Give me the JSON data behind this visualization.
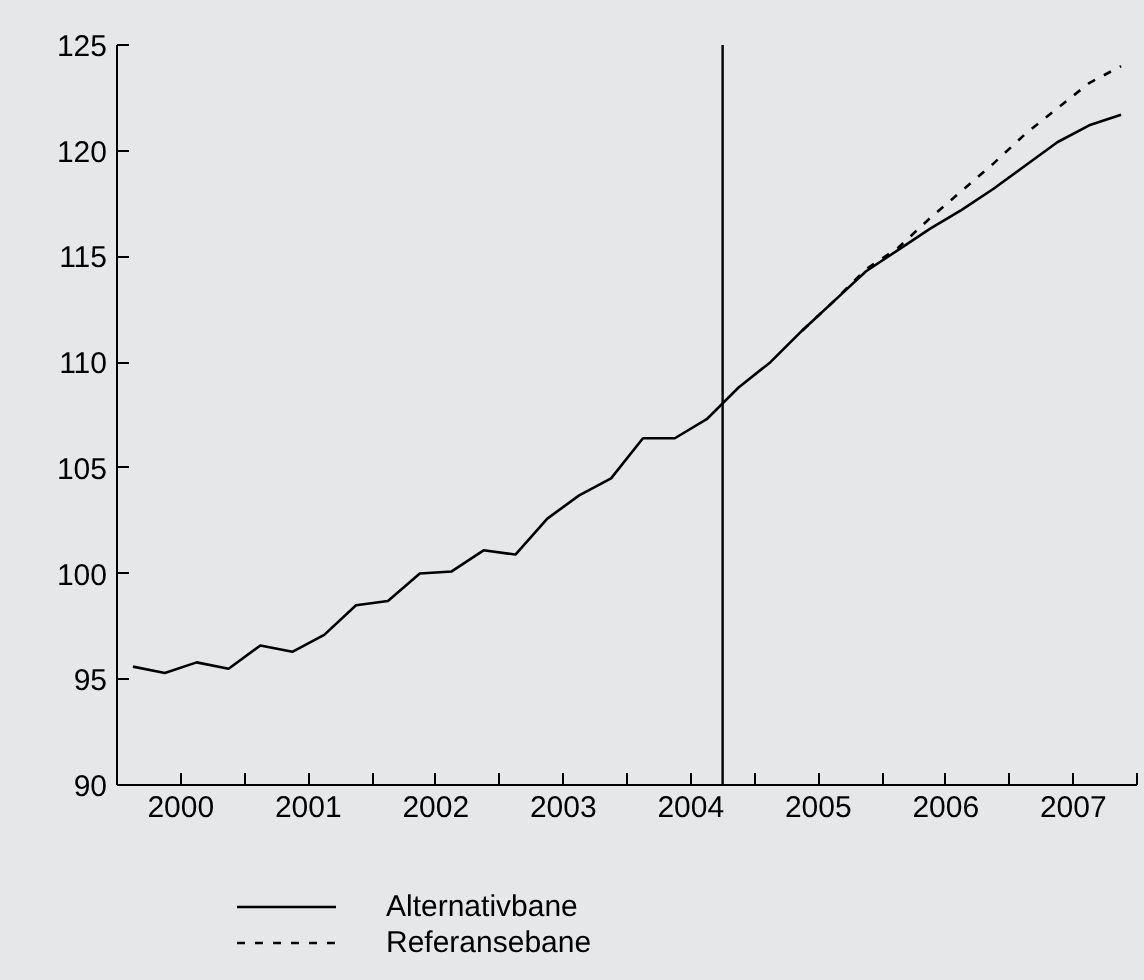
{
  "chart_data": {
    "type": "line",
    "xlim": [
      2000,
      2008
    ],
    "ylim": [
      90,
      125
    ],
    "yticks": [
      90,
      95,
      100,
      105,
      110,
      115,
      120,
      125
    ],
    "xticks": [
      {
        "value": 2000,
        "label": null
      },
      {
        "value": 2000.5,
        "label": "2000"
      },
      {
        "value": 2001,
        "label": null
      },
      {
        "value": 2001.5,
        "label": "2001"
      },
      {
        "value": 2002,
        "label": null
      },
      {
        "value": 2002.5,
        "label": "2002"
      },
      {
        "value": 2003,
        "label": null
      },
      {
        "value": 2003.5,
        "label": "2003"
      },
      {
        "value": 2004,
        "label": null
      },
      {
        "value": 2004.5,
        "label": "2004"
      },
      {
        "value": 2005,
        "label": null
      },
      {
        "value": 2005.5,
        "label": "2005"
      },
      {
        "value": 2006,
        "label": null
      },
      {
        "value": 2006.5,
        "label": "2006"
      },
      {
        "value": 2007,
        "label": null
      },
      {
        "value": 2007.5,
        "label": "2007"
      },
      {
        "value": 2008,
        "label": null
      }
    ],
    "legend": "bottom",
    "ref_lines": [
      {
        "axis": "x",
        "value": 2004.75,
        "label": null,
        "color": "#000000"
      }
    ],
    "series": [
      {
        "name": "Alternativbane",
        "color": "#000000",
        "line_style": "solid",
        "x": [
          2000.125,
          2000.375,
          2000.625,
          2000.875,
          2001.125,
          2001.375,
          2001.625,
          2001.875,
          2002.125,
          2002.375,
          2002.625,
          2002.875,
          2003.125,
          2003.375,
          2003.625,
          2003.875,
          2004.125,
          2004.375,
          2004.625,
          2004.875,
          2005.125,
          2005.375,
          2005.625,
          2005.875,
          2006.125,
          2006.375,
          2006.625,
          2006.875,
          2007.125,
          2007.375,
          2007.625,
          2007.875
        ],
        "values": [
          95.6,
          95.3,
          95.8,
          95.5,
          96.6,
          96.3,
          97.1,
          98.5,
          98.7,
          100.0,
          100.1,
          101.1,
          100.9,
          102.6,
          103.7,
          104.5,
          106.4,
          106.4,
          107.3,
          108.8,
          110.0,
          111.5,
          112.9,
          114.3,
          115.3,
          116.3,
          117.2,
          118.2,
          119.3,
          120.4,
          121.2,
          121.7
        ]
      },
      {
        "name": "Referansebane",
        "color": "#000000",
        "line_style": "dashed",
        "x": [
          2005.375,
          2005.625,
          2005.875,
          2006.125,
          2006.375,
          2006.625,
          2006.875,
          2007.125,
          2007.375,
          2007.625,
          2007.875
        ],
        "values": [
          111.5,
          112.9,
          114.4,
          115.4,
          116.8,
          118.1,
          119.4,
          120.8,
          122.0,
          123.2,
          124.0
        ]
      }
    ]
  }
}
